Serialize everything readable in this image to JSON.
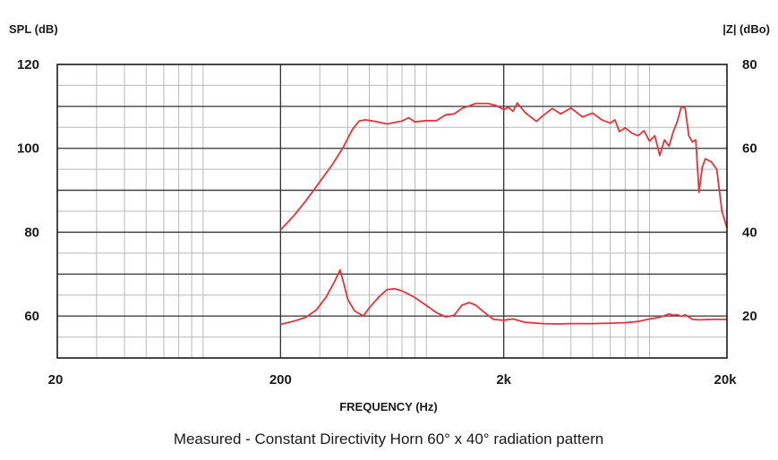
{
  "chart_data": {
    "type": "line",
    "title": "",
    "caption": "Measured - Constant Directivity Horn 60° x 40° radiation pattern",
    "xlabel": "FREQUENCY (Hz)",
    "ylabel": "SPL (dB)",
    "y2label": "|Z| (dBo)",
    "xscale": "log",
    "xlim": [
      20,
      20000
    ],
    "ylim": [
      50,
      120
    ],
    "y2lim": [
      10,
      80
    ],
    "x_ticks": [
      20,
      200,
      2000,
      20000
    ],
    "x_tick_labels": [
      "20",
      "200",
      "2k",
      "20k"
    ],
    "y_ticks": [
      60,
      80,
      100,
      120
    ],
    "y_tick_labels": [
      "60",
      "80",
      "100",
      "120"
    ],
    "y2_ticks": [
      20,
      40,
      60,
      80
    ],
    "y2_tick_labels": [
      "20",
      "40",
      "60",
      "80"
    ],
    "grid": true,
    "legend": "none",
    "line_color": "#e8323a",
    "series": [
      {
        "axis": "left",
        "x": [
          200,
          230,
          260,
          300,
          340,
          380,
          420,
          450,
          480,
          520,
          600,
          700,
          750,
          800,
          900,
          1000,
          1100,
          1200,
          1300,
          1500,
          1700,
          1850,
          2000,
          2100,
          2200,
          2300,
          2500,
          2800,
          3000,
          3300,
          3600,
          4000,
          4500,
          5000,
          5500,
          6000,
          6300,
          6600,
          7000,
          7500,
          8000,
          8500,
          9000,
          9500,
          10000,
          10500,
          11000,
          11500,
          12000,
          12500,
          13000,
          13500,
          14000,
          14500,
          15000,
          15500,
          16000,
          17000,
          18000,
          19000,
          20000
        ],
        "y": [
          80.5,
          84,
          87.5,
          92,
          96,
          100,
          104.5,
          106.5,
          106.8,
          106.5,
          105.8,
          106.5,
          107.3,
          106.3,
          106.6,
          106.6,
          108.0,
          108.2,
          109.5,
          110.7,
          110.7,
          110.2,
          109.2,
          109.8,
          108.8,
          110.8,
          108.5,
          106.4,
          107.8,
          109.5,
          108.2,
          109.6,
          107.5,
          108.4,
          106.8,
          106.0,
          106.8,
          104.0,
          104.9,
          103.6,
          103.0,
          104.2,
          101.7,
          103.0,
          98.3,
          102.0,
          100.5,
          104.0,
          106.5,
          110.0,
          109.5,
          103.0,
          101.5,
          102.0,
          89.5,
          95.5,
          97.5,
          96.8,
          95.0,
          85.0,
          81.0
        ]
      },
      {
        "axis": "right",
        "x": [
          200,
          230,
          260,
          290,
          320,
          350,
          370,
          385,
          400,
          430,
          470,
          500,
          550,
          600,
          650,
          700,
          750,
          800,
          900,
          1000,
          1100,
          1200,
          1300,
          1400,
          1500,
          1600,
          1700,
          1800,
          1900,
          2000,
          2200,
          2500,
          3000,
          3500,
          4000,
          5000,
          6000,
          7000,
          8000,
          9000,
          10000,
          11000,
          11500,
          12000,
          12500,
          13000,
          14000,
          15000,
          17000,
          20000
        ],
        "y": [
          18.0,
          18.8,
          19.7,
          21.5,
          24.5,
          28.3,
          31.0,
          27.5,
          24.0,
          21.2,
          20.0,
          22.0,
          24.5,
          26.3,
          26.5,
          26.0,
          25.2,
          24.4,
          22.5,
          20.8,
          19.8,
          20.2,
          22.6,
          23.2,
          22.6,
          21.3,
          20.2,
          19.2,
          19.1,
          19.0,
          19.3,
          18.5,
          18.2,
          18.1,
          18.2,
          18.2,
          18.3,
          18.4,
          18.7,
          19.3,
          19.7,
          20.5,
          20.2,
          20.3,
          19.9,
          20.3,
          19.2,
          19.1,
          19.2,
          19.2
        ]
      }
    ]
  }
}
